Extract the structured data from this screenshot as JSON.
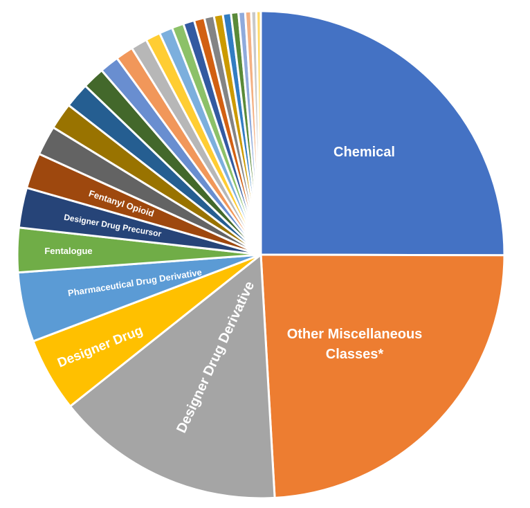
{
  "chart_data": {
    "type": "pie",
    "title": "",
    "start_angle_deg": 0,
    "direction": "clockwise",
    "legend": "none",
    "slices": [
      {
        "label": "Chemical",
        "value": 25.5,
        "color": "#4472C4"
      },
      {
        "label": "Other Miscellaneous Classes*",
        "value": 24.5,
        "color": "#ED7D31"
      },
      {
        "label": "Designer Drug Derivative",
        "value": 15.5,
        "color": "#A5A5A5"
      },
      {
        "label": "Designer Drug",
        "value": 5.0,
        "color": "#FFC000"
      },
      {
        "label": "Pharmaceutical Drug Derivative",
        "value": 4.7,
        "color": "#5B9BD5"
      },
      {
        "label": "Fentalogue",
        "value": 3.0,
        "color": "#70AD47"
      },
      {
        "label": "Designer Drug Precursor",
        "value": 2.7,
        "color": "#264478"
      },
      {
        "label": "Fentanyl Opioid",
        "value": 2.4,
        "color": "#9E480E"
      },
      {
        "label": "",
        "value": 2.0,
        "color": "#636363"
      },
      {
        "label": "",
        "value": 1.8,
        "color": "#997300"
      },
      {
        "label": "",
        "value": 1.7,
        "color": "#255E91"
      },
      {
        "label": "",
        "value": 1.5,
        "color": "#43682B"
      },
      {
        "label": "",
        "value": 1.3,
        "color": "#698ED0"
      },
      {
        "label": "",
        "value": 1.2,
        "color": "#F1975A"
      },
      {
        "label": "",
        "value": 1.1,
        "color": "#B7B7B7"
      },
      {
        "label": "",
        "value": 1.0,
        "color": "#FFCD33"
      },
      {
        "label": "",
        "value": 0.9,
        "color": "#7CAFDD"
      },
      {
        "label": "",
        "value": 0.8,
        "color": "#8CC168"
      },
      {
        "label": "",
        "value": 0.75,
        "color": "#335AA1"
      },
      {
        "label": "",
        "value": 0.7,
        "color": "#D26012"
      },
      {
        "label": "",
        "value": 0.65,
        "color": "#848484"
      },
      {
        "label": "",
        "value": 0.6,
        "color": "#CC9A00"
      },
      {
        "label": "",
        "value": 0.55,
        "color": "#327DC2"
      },
      {
        "label": "",
        "value": 0.5,
        "color": "#5A8A39"
      },
      {
        "label": "",
        "value": 0.45,
        "color": "#8FAADC"
      },
      {
        "label": "",
        "value": 0.4,
        "color": "#F4B183"
      },
      {
        "label": "",
        "value": 0.35,
        "color": "#C9C9C9"
      },
      {
        "label": "",
        "value": 0.3,
        "color": "#FFD966"
      }
    ]
  }
}
